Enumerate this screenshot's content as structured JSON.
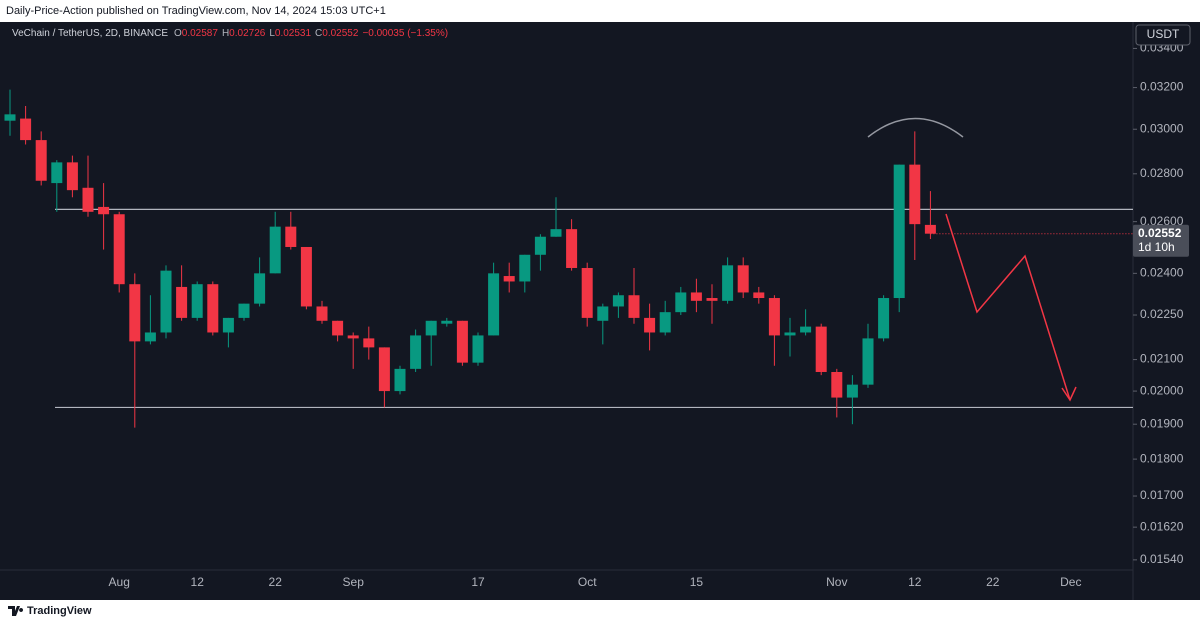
{
  "header": {
    "title": "Daily-Price-Action published on TradingView.com, Nov 14, 2024 15:03 UTC+1"
  },
  "footer": {
    "brand": "TradingView"
  },
  "chart_data": {
    "type": "candlestick",
    "symbol": "VeChain / TetherUS, 2D, BINANCE",
    "ohlc_keys": [
      "O",
      "H",
      "L",
      "C"
    ],
    "change": "−0.00035 (−1.35%)",
    "currency": "USDT",
    "countdown": "1d 10h",
    "up_color": "#089981",
    "down_color": "#f23645",
    "log_scale": true,
    "grid": false,
    "ylim": [
      0.01516,
      0.03542
    ],
    "yticks": [
      {
        "value": 0.034,
        "label": "0.03400"
      },
      {
        "value": 0.032,
        "label": "0.03200"
      },
      {
        "value": 0.03,
        "label": "0.03000"
      },
      {
        "value": 0.028,
        "label": "0.02800"
      },
      {
        "value": 0.026,
        "label": "0.02600"
      },
      {
        "value": 0.024,
        "label": "0.02400"
      },
      {
        "value": 0.0225,
        "label": "0.02250"
      },
      {
        "value": 0.021,
        "label": "0.02100"
      },
      {
        "value": 0.02,
        "label": "0.02000"
      },
      {
        "value": 0.019,
        "label": "0.01900"
      },
      {
        "value": 0.018,
        "label": "0.01800"
      },
      {
        "value": 0.017,
        "label": "0.01700"
      },
      {
        "value": 0.0162,
        "label": "0.01620"
      },
      {
        "value": 0.0154,
        "label": "0.01540"
      }
    ],
    "levels": [
      0.0265,
      0.0195
    ],
    "categories": [
      null,
      null,
      null,
      null,
      null,
      null,
      null,
      "Aug",
      null,
      null,
      null,
      null,
      "12",
      null,
      null,
      null,
      null,
      "22",
      null,
      null,
      null,
      null,
      "Sep",
      null,
      null,
      null,
      null,
      null,
      null,
      null,
      "17",
      null,
      null,
      null,
      null,
      null,
      null,
      "Oct",
      null,
      null,
      null,
      null,
      null,
      null,
      "15",
      null,
      null,
      null,
      null,
      null,
      null,
      null,
      null,
      "Nov",
      null,
      null,
      null,
      null,
      "12",
      null,
      null,
      null,
      null,
      "22",
      null,
      null,
      null,
      null,
      "Dec"
    ],
    "open": [
      0.0304,
      0.0305,
      0.0295,
      0.0276,
      0.0285,
      0.0274,
      0.0266,
      0.0263,
      0.0236,
      0.0216,
      0.0219,
      0.0235,
      0.0224,
      0.0236,
      0.0219,
      0.0224,
      0.0229,
      0.024,
      0.0258,
      0.025,
      0.0228,
      0.0223,
      0.0218,
      0.0217,
      0.0214,
      0.02,
      0.0207,
      0.0218,
      0.0222,
      0.0223,
      0.0209,
      0.0218,
      0.0239,
      0.0237,
      0.0247,
      0.0254,
      0.0257,
      0.0242,
      0.0223,
      0.0228,
      0.0232,
      0.0224,
      0.0219,
      0.0226,
      0.0233,
      0.0231,
      0.023,
      0.0243,
      0.0233,
      0.0231,
      0.0218,
      0.0219,
      0.0221,
      0.0206,
      0.0198,
      0.0202,
      0.0217,
      0.0231,
      0.0284,
      0.02587,
      null,
      null,
      null,
      null,
      null,
      null,
      null,
      null,
      null
    ],
    "high": [
      0.0319,
      0.0311,
      0.0299,
      0.0286,
      0.0288,
      0.0288,
      0.0276,
      0.0264,
      0.024,
      0.0232,
      0.0243,
      0.0243,
      0.0237,
      0.0237,
      0.0224,
      0.0229,
      0.0246,
      0.0264,
      0.0264,
      0.025,
      0.023,
      0.0223,
      0.0219,
      0.0221,
      0.0214,
      0.0208,
      0.022,
      0.0223,
      0.0224,
      0.0223,
      0.0219,
      0.0244,
      0.0244,
      0.0247,
      0.0255,
      0.027,
      0.0261,
      0.0244,
      0.0229,
      0.0233,
      0.0242,
      0.0229,
      0.023,
      0.0235,
      0.0238,
      0.0236,
      0.0246,
      0.0246,
      0.0235,
      0.0232,
      0.0224,
      0.0227,
      0.0222,
      0.0207,
      0.0205,
      0.0222,
      0.0232,
      0.0284,
      0.0299,
      0.02726,
      null,
      null,
      null,
      null,
      null,
      null,
      null,
      null,
      null
    ],
    "low": [
      0.0297,
      0.0293,
      0.0275,
      0.0264,
      0.027,
      0.0262,
      0.0249,
      0.0233,
      0.0189,
      0.0215,
      0.0217,
      0.0223,
      0.0223,
      0.0218,
      0.0214,
      0.0223,
      0.0228,
      0.024,
      0.0249,
      0.0227,
      0.0222,
      0.0216,
      0.0207,
      0.021,
      0.0195,
      0.0199,
      0.0206,
      0.0208,
      0.0221,
      0.0208,
      0.0208,
      0.0218,
      0.0233,
      0.0233,
      0.0241,
      0.0254,
      0.0241,
      0.0221,
      0.0215,
      0.0224,
      0.0222,
      0.0213,
      0.0218,
      0.0225,
      0.0226,
      0.0222,
      0.0229,
      0.0231,
      0.0229,
      0.0208,
      0.0211,
      0.0218,
      0.0205,
      0.0192,
      0.019,
      0.0201,
      0.0216,
      0.0226,
      0.0245,
      0.02531,
      null,
      null,
      null,
      null,
      null,
      null,
      null,
      null,
      null
    ],
    "close": [
      0.0307,
      0.0295,
      0.0277,
      0.0285,
      0.0273,
      0.0264,
      0.0263,
      0.0236,
      0.0216,
      0.0219,
      0.0241,
      0.0224,
      0.0236,
      0.0219,
      0.0224,
      0.0229,
      0.024,
      0.0258,
      0.025,
      0.0228,
      0.0223,
      0.0218,
      0.0217,
      0.0214,
      0.02,
      0.0207,
      0.0218,
      0.0223,
      0.0223,
      0.0209,
      0.0218,
      0.024,
      0.0237,
      0.0247,
      0.0254,
      0.0257,
      0.0242,
      0.0224,
      0.0228,
      0.0232,
      0.0224,
      0.0219,
      0.0226,
      0.0233,
      0.023,
      0.023,
      0.0243,
      0.0233,
      0.0231,
      0.0218,
      0.0219,
      0.0221,
      0.0206,
      0.0198,
      0.0202,
      0.0217,
      0.0231,
      0.0284,
      0.0259,
      0.02552,
      null,
      null,
      null,
      null,
      null,
      null,
      null,
      null,
      null
    ]
  }
}
